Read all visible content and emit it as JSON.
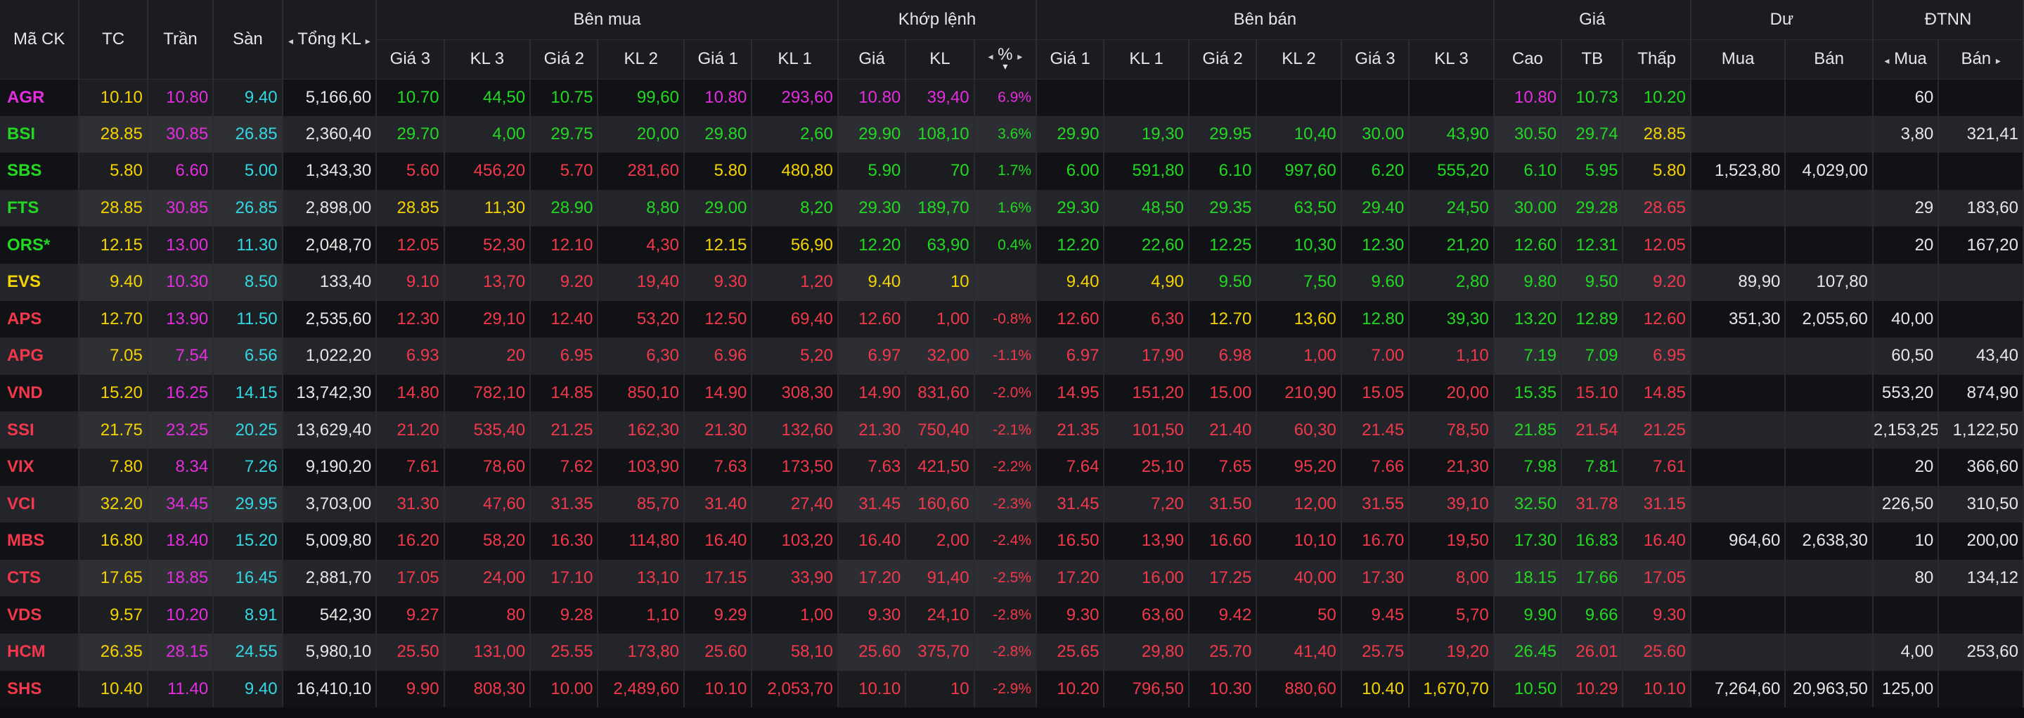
{
  "colors": {
    "up": "#22d822",
    "down": "#f2384a",
    "ref": "#f5d300",
    "ceiling": "#e52de0",
    "floor": "#33d6e2",
    "white": "#e6e6e6"
  },
  "header": {
    "symbol": "Mã CK",
    "ref": "TC",
    "ceiling": "Trần",
    "floor": "Sàn",
    "total_vol": "Tổng KL",
    "buy_group": "Bên mua",
    "match_group": "Khớp lệnh",
    "sell_group": "Bên bán",
    "price_group": "Giá",
    "residual_group": "Dư",
    "foreign_group": "ĐTNN",
    "price3": "Giá 3",
    "vol3": "KL 3",
    "price2": "Giá 2",
    "vol2": "KL 2",
    "price1": "Giá 1",
    "vol1": "KL 1",
    "match_price": "Giá",
    "match_vol": "KL",
    "match_pct": "%",
    "high": "Cao",
    "avg": "TB",
    "low": "Thấp",
    "res_buy": "Mua",
    "res_sell": "Bán",
    "frn_buy": "Mua",
    "frn_sell": "Bán",
    "left_arrow": "◂",
    "right_arrow": "▸",
    "sort_arrow": "▾"
  },
  "rows": [
    {
      "v": [
        "AGR",
        "10.10",
        "10.80",
        "9.40",
        "5,166,60",
        "10.70",
        "44,50",
        "10.75",
        "99,60",
        "10.80",
        "293,60",
        "10.80",
        "39,40",
        "6.9%",
        "",
        "",
        "",
        "",
        "",
        "",
        "10.80",
        "10.73",
        "10.20",
        "",
        "",
        "60",
        ""
      ],
      "c": [
        "ce",
        "ref",
        "ce",
        "fl",
        "w",
        "up",
        "up",
        "up",
        "up",
        "ce",
        "ce",
        "ce",
        "ce",
        "ce",
        "w",
        "w",
        "w",
        "w",
        "w",
        "w",
        "ce",
        "up",
        "up",
        "w",
        "w",
        "w",
        "w"
      ]
    },
    {
      "v": [
        "BSI",
        "28.85",
        "30.85",
        "26.85",
        "2,360,40",
        "29.70",
        "4,00",
        "29.75",
        "20,00",
        "29.80",
        "2,60",
        "29.90",
        "108,10",
        "3.6%",
        "29.90",
        "19,30",
        "29.95",
        "10,40",
        "30.00",
        "43,90",
        "30.50",
        "29.74",
        "28.85",
        "",
        "",
        "3,80",
        "321,41"
      ],
      "c": [
        "up",
        "ref",
        "ce",
        "fl",
        "w",
        "up",
        "up",
        "up",
        "up",
        "up",
        "up",
        "up",
        "up",
        "up",
        "up",
        "up",
        "up",
        "up",
        "up",
        "up",
        "up",
        "up",
        "ref",
        "w",
        "w",
        "w",
        "w"
      ]
    },
    {
      "v": [
        "SBS",
        "5.80",
        "6.60",
        "5.00",
        "1,343,30",
        "5.60",
        "456,20",
        "5.70",
        "281,60",
        "5.80",
        "480,80",
        "5.90",
        "70",
        "1.7%",
        "6.00",
        "591,80",
        "6.10",
        "997,60",
        "6.20",
        "555,20",
        "6.10",
        "5.95",
        "5.80",
        "1,523,80",
        "4,029,00",
        "",
        ""
      ],
      "c": [
        "up",
        "ref",
        "ce",
        "fl",
        "w",
        "dn",
        "dn",
        "dn",
        "dn",
        "ref",
        "ref",
        "up",
        "up",
        "up",
        "up",
        "up",
        "up",
        "up",
        "up",
        "up",
        "up",
        "up",
        "ref",
        "w",
        "w",
        "w",
        "w"
      ]
    },
    {
      "v": [
        "FTS",
        "28.85",
        "30.85",
        "26.85",
        "2,898,00",
        "28.85",
        "11,30",
        "28.90",
        "8,80",
        "29.00",
        "8,20",
        "29.30",
        "189,70",
        "1.6%",
        "29.30",
        "48,50",
        "29.35",
        "63,50",
        "29.40",
        "24,50",
        "30.00",
        "29.28",
        "28.65",
        "",
        "",
        "29",
        "183,60"
      ],
      "c": [
        "up",
        "ref",
        "ce",
        "fl",
        "w",
        "ref",
        "ref",
        "up",
        "up",
        "up",
        "up",
        "up",
        "up",
        "up",
        "up",
        "up",
        "up",
        "up",
        "up",
        "up",
        "up",
        "up",
        "dn",
        "w",
        "w",
        "w",
        "w"
      ]
    },
    {
      "v": [
        "ORS*",
        "12.15",
        "13.00",
        "11.30",
        "2,048,70",
        "12.05",
        "52,30",
        "12.10",
        "4,30",
        "12.15",
        "56,90",
        "12.20",
        "63,90",
        "0.4%",
        "12.20",
        "22,60",
        "12.25",
        "10,30",
        "12.30",
        "21,20",
        "12.60",
        "12.31",
        "12.05",
        "",
        "",
        "20",
        "167,20"
      ],
      "c": [
        "up",
        "ref",
        "ce",
        "fl",
        "w",
        "dn",
        "dn",
        "dn",
        "dn",
        "ref",
        "ref",
        "up",
        "up",
        "up",
        "up",
        "up",
        "up",
        "up",
        "up",
        "up",
        "up",
        "up",
        "dn",
        "w",
        "w",
        "w",
        "w"
      ]
    },
    {
      "v": [
        "EVS",
        "9.40",
        "10.30",
        "8.50",
        "133,40",
        "9.10",
        "13,70",
        "9.20",
        "19,40",
        "9.30",
        "1,20",
        "9.40",
        "10",
        "",
        "9.40",
        "4,90",
        "9.50",
        "7,50",
        "9.60",
        "2,80",
        "9.80",
        "9.50",
        "9.20",
        "89,90",
        "107,80",
        "",
        ""
      ],
      "c": [
        "ref",
        "ref",
        "ce",
        "fl",
        "w",
        "dn",
        "dn",
        "dn",
        "dn",
        "dn",
        "dn",
        "ref",
        "ref",
        "ref",
        "ref",
        "ref",
        "up",
        "up",
        "up",
        "up",
        "up",
        "up",
        "dn",
        "w",
        "w",
        "w",
        "w"
      ]
    },
    {
      "v": [
        "APS",
        "12.70",
        "13.90",
        "11.50",
        "2,535,60",
        "12.30",
        "29,10",
        "12.40",
        "53,20",
        "12.50",
        "69,40",
        "12.60",
        "1,00",
        "-0.8%",
        "12.60",
        "6,30",
        "12.70",
        "13,60",
        "12.80",
        "39,30",
        "13.20",
        "12.89",
        "12.60",
        "351,30",
        "2,055,60",
        "40,00",
        ""
      ],
      "c": [
        "dn",
        "ref",
        "ce",
        "fl",
        "w",
        "dn",
        "dn",
        "dn",
        "dn",
        "dn",
        "dn",
        "dn",
        "dn",
        "dn",
        "dn",
        "dn",
        "ref",
        "ref",
        "up",
        "up",
        "up",
        "up",
        "dn",
        "w",
        "w",
        "w",
        "w"
      ]
    },
    {
      "v": [
        "APG",
        "7.05",
        "7.54",
        "6.56",
        "1,022,20",
        "6.93",
        "20",
        "6.95",
        "6,30",
        "6.96",
        "5,20",
        "6.97",
        "32,00",
        "-1.1%",
        "6.97",
        "17,90",
        "6.98",
        "1,00",
        "7.00",
        "1,10",
        "7.19",
        "7.09",
        "6.95",
        "",
        "",
        "60,50",
        "43,40"
      ],
      "c": [
        "dn",
        "ref",
        "ce",
        "fl",
        "w",
        "dn",
        "dn",
        "dn",
        "dn",
        "dn",
        "dn",
        "dn",
        "dn",
        "dn",
        "dn",
        "dn",
        "dn",
        "dn",
        "dn",
        "dn",
        "up",
        "up",
        "dn",
        "w",
        "w",
        "w",
        "w"
      ]
    },
    {
      "v": [
        "VND",
        "15.20",
        "16.25",
        "14.15",
        "13,742,30",
        "14.80",
        "782,10",
        "14.85",
        "850,10",
        "14.90",
        "308,30",
        "14.90",
        "831,60",
        "-2.0%",
        "14.95",
        "151,20",
        "15.00",
        "210,90",
        "15.05",
        "20,00",
        "15.35",
        "15.10",
        "14.85",
        "",
        "",
        "553,20",
        "874,90"
      ],
      "c": [
        "dn",
        "ref",
        "ce",
        "fl",
        "w",
        "dn",
        "dn",
        "dn",
        "dn",
        "dn",
        "dn",
        "dn",
        "dn",
        "dn",
        "dn",
        "dn",
        "dn",
        "dn",
        "dn",
        "dn",
        "up",
        "dn",
        "dn",
        "w",
        "w",
        "w",
        "w"
      ]
    },
    {
      "v": [
        "SSI",
        "21.75",
        "23.25",
        "20.25",
        "13,629,40",
        "21.20",
        "535,40",
        "21.25",
        "162,30",
        "21.30",
        "132,60",
        "21.30",
        "750,40",
        "-2.1%",
        "21.35",
        "101,50",
        "21.40",
        "60,30",
        "21.45",
        "78,50",
        "21.85",
        "21.54",
        "21.25",
        "",
        "",
        "2,153,25",
        "1,122,50"
      ],
      "c": [
        "dn",
        "ref",
        "ce",
        "fl",
        "w",
        "dn",
        "dn",
        "dn",
        "dn",
        "dn",
        "dn",
        "dn",
        "dn",
        "dn",
        "dn",
        "dn",
        "dn",
        "dn",
        "dn",
        "dn",
        "up",
        "dn",
        "dn",
        "w",
        "w",
        "w",
        "w"
      ]
    },
    {
      "v": [
        "VIX",
        "7.80",
        "8.34",
        "7.26",
        "9,190,20",
        "7.61",
        "78,60",
        "7.62",
        "103,90",
        "7.63",
        "173,50",
        "7.63",
        "421,50",
        "-2.2%",
        "7.64",
        "25,10",
        "7.65",
        "95,20",
        "7.66",
        "21,30",
        "7.98",
        "7.81",
        "7.61",
        "",
        "",
        "20",
        "366,60"
      ],
      "c": [
        "dn",
        "ref",
        "ce",
        "fl",
        "w",
        "dn",
        "dn",
        "dn",
        "dn",
        "dn",
        "dn",
        "dn",
        "dn",
        "dn",
        "dn",
        "dn",
        "dn",
        "dn",
        "dn",
        "dn",
        "up",
        "up",
        "dn",
        "w",
        "w",
        "w",
        "w"
      ]
    },
    {
      "v": [
        "VCI",
        "32.20",
        "34.45",
        "29.95",
        "3,703,00",
        "31.30",
        "47,60",
        "31.35",
        "85,70",
        "31.40",
        "27,40",
        "31.45",
        "160,60",
        "-2.3%",
        "31.45",
        "7,20",
        "31.50",
        "12,00",
        "31.55",
        "39,10",
        "32.50",
        "31.78",
        "31.15",
        "",
        "",
        "226,50",
        "310,50"
      ],
      "c": [
        "dn",
        "ref",
        "ce",
        "fl",
        "w",
        "dn",
        "dn",
        "dn",
        "dn",
        "dn",
        "dn",
        "dn",
        "dn",
        "dn",
        "dn",
        "dn",
        "dn",
        "dn",
        "dn",
        "dn",
        "up",
        "dn",
        "dn",
        "w",
        "w",
        "w",
        "w"
      ]
    },
    {
      "v": [
        "MBS",
        "16.80",
        "18.40",
        "15.20",
        "5,009,80",
        "16.20",
        "58,20",
        "16.30",
        "114,80",
        "16.40",
        "103,20",
        "16.40",
        "2,00",
        "-2.4%",
        "16.50",
        "13,90",
        "16.60",
        "10,10",
        "16.70",
        "19,50",
        "17.30",
        "16.83",
        "16.40",
        "964,60",
        "2,638,30",
        "10",
        "200,00"
      ],
      "c": [
        "dn",
        "ref",
        "ce",
        "fl",
        "w",
        "dn",
        "dn",
        "dn",
        "dn",
        "dn",
        "dn",
        "dn",
        "dn",
        "dn",
        "dn",
        "dn",
        "dn",
        "dn",
        "dn",
        "dn",
        "up",
        "up",
        "dn",
        "w",
        "w",
        "w",
        "w"
      ]
    },
    {
      "v": [
        "CTS",
        "17.65",
        "18.85",
        "16.45",
        "2,881,70",
        "17.05",
        "24,00",
        "17.10",
        "13,10",
        "17.15",
        "33,90",
        "17.20",
        "91,40",
        "-2.5%",
        "17.20",
        "16,00",
        "17.25",
        "40,00",
        "17.30",
        "8,00",
        "18.15",
        "17.66",
        "17.05",
        "",
        "",
        "80",
        "134,12"
      ],
      "c": [
        "dn",
        "ref",
        "ce",
        "fl",
        "w",
        "dn",
        "dn",
        "dn",
        "dn",
        "dn",
        "dn",
        "dn",
        "dn",
        "dn",
        "dn",
        "dn",
        "dn",
        "dn",
        "dn",
        "dn",
        "up",
        "up",
        "dn",
        "w",
        "w",
        "w",
        "w"
      ]
    },
    {
      "v": [
        "VDS",
        "9.57",
        "10.20",
        "8.91",
        "542,30",
        "9.27",
        "80",
        "9.28",
        "1,10",
        "9.29",
        "1,00",
        "9.30",
        "24,10",
        "-2.8%",
        "9.30",
        "63,60",
        "9.42",
        "50",
        "9.45",
        "5,70",
        "9.90",
        "9.66",
        "9.30",
        "",
        "",
        "",
        ""
      ],
      "c": [
        "dn",
        "ref",
        "ce",
        "fl",
        "w",
        "dn",
        "dn",
        "dn",
        "dn",
        "dn",
        "dn",
        "dn",
        "dn",
        "dn",
        "dn",
        "dn",
        "dn",
        "dn",
        "dn",
        "dn",
        "up",
        "up",
        "dn",
        "w",
        "w",
        "w",
        "w"
      ]
    },
    {
      "v": [
        "HCM",
        "26.35",
        "28.15",
        "24.55",
        "5,980,10",
        "25.50",
        "131,00",
        "25.55",
        "173,80",
        "25.60",
        "58,10",
        "25.60",
        "375,70",
        "-2.8%",
        "25.65",
        "29,80",
        "25.70",
        "41,40",
        "25.75",
        "19,20",
        "26.45",
        "26.01",
        "25.60",
        "",
        "",
        "4,00",
        "253,60"
      ],
      "c": [
        "dn",
        "ref",
        "ce",
        "fl",
        "w",
        "dn",
        "dn",
        "dn",
        "dn",
        "dn",
        "dn",
        "dn",
        "dn",
        "dn",
        "dn",
        "dn",
        "dn",
        "dn",
        "dn",
        "dn",
        "up",
        "dn",
        "dn",
        "w",
        "w",
        "w",
        "w"
      ]
    },
    {
      "v": [
        "SHS",
        "10.40",
        "11.40",
        "9.40",
        "16,410,10",
        "9.90",
        "808,30",
        "10.00",
        "2,489,60",
        "10.10",
        "2,053,70",
        "10.10",
        "10",
        "-2.9%",
        "10.20",
        "796,50",
        "10.30",
        "880,60",
        "10.40",
        "1,670,70",
        "10.50",
        "10.29",
        "10.10",
        "7,264,60",
        "20,963,50",
        "125,00",
        ""
      ],
      "c": [
        "dn",
        "ref",
        "ce",
        "fl",
        "w",
        "dn",
        "dn",
        "dn",
        "dn",
        "dn",
        "dn",
        "dn",
        "dn",
        "dn",
        "dn",
        "dn",
        "dn",
        "dn",
        "ref",
        "ref",
        "up",
        "dn",
        "dn",
        "w",
        "w",
        "w",
        "w"
      ]
    }
  ]
}
